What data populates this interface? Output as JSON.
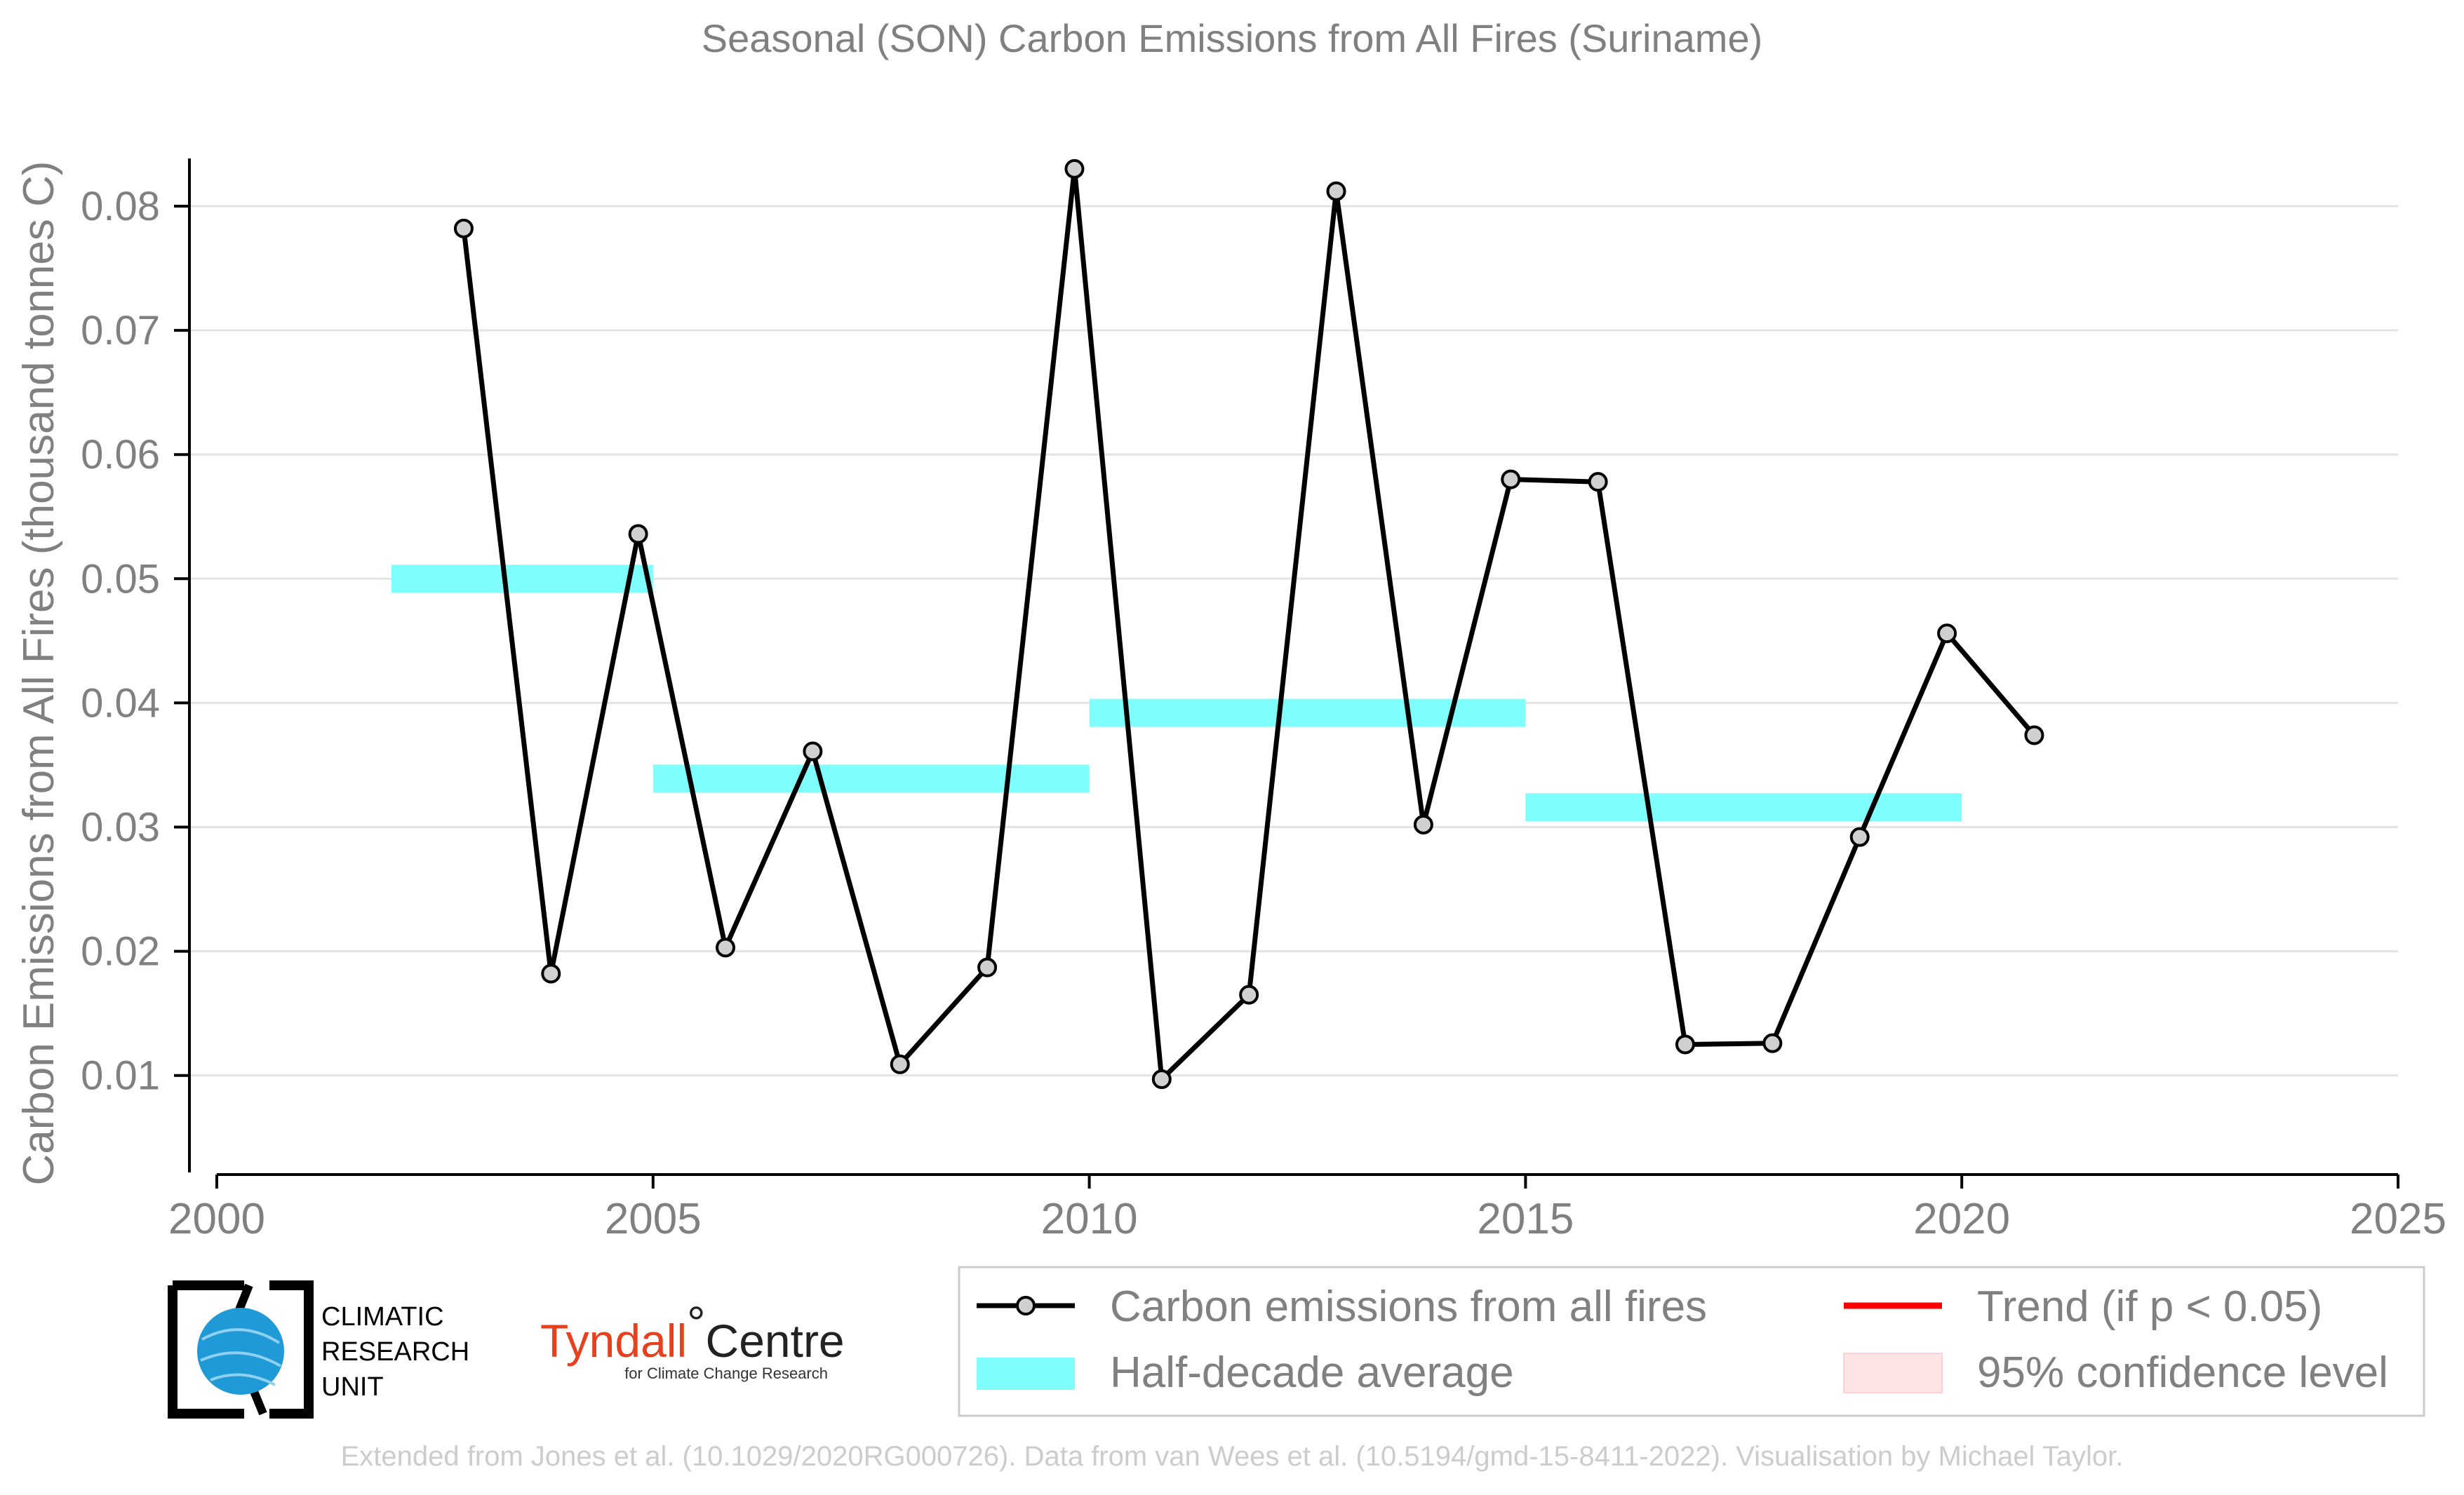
{
  "chart_data": {
    "type": "line",
    "title": "Seasonal (SON) Carbon Emissions from All Fires (Suriname)",
    "ylabel": "Carbon Emissions from All Fires (thousand tonnes C)",
    "xlabel": "",
    "xlim": [
      2000,
      2025
    ],
    "ylim": [
      0.004,
      0.087
    ],
    "xticks": [
      2000,
      2005,
      2010,
      2015,
      2020,
      2025
    ],
    "yticks": [
      0.01,
      0.02,
      0.03,
      0.04,
      0.05,
      0.06,
      0.07,
      0.08
    ],
    "ytick_labels": [
      "0.01",
      "0.02",
      "0.03",
      "0.04",
      "0.05",
      "0.06",
      "0.07",
      "0.08"
    ],
    "grid": "horizontal",
    "series": [
      {
        "name": "Carbon emissions from all fires",
        "x": [
          2002.83,
          2003.83,
          2004.83,
          2005.83,
          2006.83,
          2007.83,
          2008.83,
          2009.83,
          2010.83,
          2011.83,
          2012.83,
          2013.83,
          2014.83,
          2015.83,
          2016.83,
          2017.83,
          2018.83,
          2019.83,
          2020.83
        ],
        "values": [
          0.0782,
          0.0182,
          0.0536,
          0.0203,
          0.0361,
          0.0109,
          0.0187,
          0.083,
          0.0097,
          0.0165,
          0.0812,
          0.0302,
          0.058,
          0.0578,
          0.0125,
          0.0126,
          0.0292,
          0.0456,
          0.0374
        ],
        "color": "#000000",
        "marker_fill": "#d0d0d0"
      }
    ],
    "half_decade_average": {
      "name": "Half-decade average",
      "color": "#7ffefe",
      "segments": [
        {
          "x_start": 2002,
          "x_end": 2005,
          "value": 0.05
        },
        {
          "x_start": 2005,
          "x_end": 2010,
          "value": 0.0339
        },
        {
          "x_start": 2010,
          "x_end": 2015,
          "value": 0.0392
        },
        {
          "x_start": 2015,
          "x_end": 2020,
          "value": 0.0316
        }
      ]
    },
    "legend": {
      "placement": "bottom-right",
      "entries": [
        {
          "label": "Carbon emissions from all fires",
          "kind": "line-marker",
          "color": "#000000"
        },
        {
          "label": "Trend (if p < 0.05)",
          "kind": "line",
          "color": "#ff0000"
        },
        {
          "label": "Half-decade average",
          "kind": "band",
          "color": "#7ffefe"
        },
        {
          "label": "95% confidence level",
          "kind": "band",
          "color": "#ffe4e6"
        }
      ]
    }
  },
  "logos": {
    "cru_lines": [
      "CLIMATIC",
      "RESEARCH",
      "UNIT"
    ],
    "tyndall_name": "Tyndall",
    "tyndall_degree": "°",
    "tyndall_centre": "Centre",
    "tyndall_sub": "for Climate Change Research"
  },
  "footer": "Extended from Jones et al. (10.1029/2020RG000726). Data from van Wees et al. (10.5194/gmd-15-8411-2022). Visualisation by Michael Taylor."
}
